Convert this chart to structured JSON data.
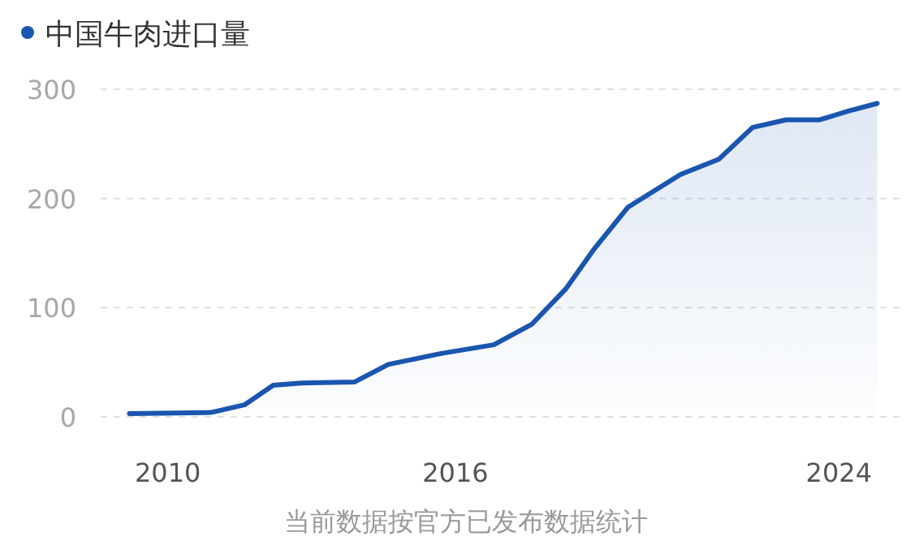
{
  "chart_data": {
    "type": "area",
    "x": [
      2009.2,
      2010.9,
      2011.6,
      2012.2,
      2012.8,
      2013.9,
      2014.6,
      2015.7,
      2016.8,
      2017.6,
      2018.3,
      2018.9,
      2019.6,
      2020.7,
      2021.5,
      2022.2,
      2022.9,
      2023.6,
      2024.2,
      2024.8
    ],
    "series": [
      {
        "name": "中国牛肉进口量",
        "color": "#1a56b0",
        "values": [
          3,
          4,
          11,
          29,
          31,
          32,
          48,
          58,
          66,
          85,
          117,
          154,
          192,
          222,
          236,
          265,
          272,
          272,
          280,
          287
        ]
      }
    ],
    "xlim": [
      2008.6,
      2025.4
    ],
    "xticks": [
      2010,
      2016,
      2024
    ],
    "ylim": [
      0,
      300
    ],
    "yticks": [
      0,
      100,
      200,
      300
    ],
    "grid": "y",
    "legend": "top left",
    "annotations": [
      "当前数据按官方已发布数据统计"
    ]
  }
}
